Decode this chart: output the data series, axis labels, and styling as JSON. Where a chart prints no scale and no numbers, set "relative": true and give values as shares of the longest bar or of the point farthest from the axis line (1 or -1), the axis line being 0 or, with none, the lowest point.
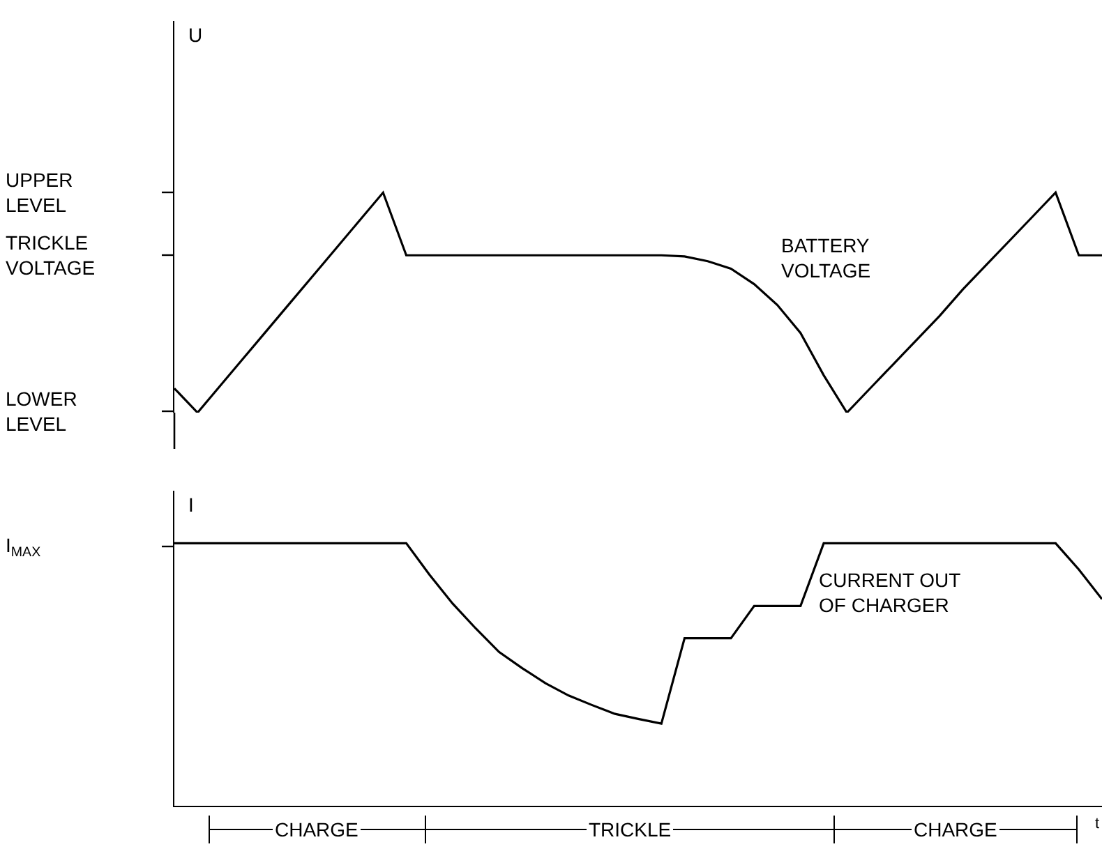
{
  "chart_data": [
    {
      "type": "line",
      "relative": true,
      "ylabel": "U",
      "marker": "none",
      "line_style": "solid",
      "categories": [
        null,
        null,
        null,
        null,
        null,
        null,
        null,
        null,
        null,
        null,
        null,
        null,
        null,
        null,
        null,
        null,
        null,
        null,
        null,
        null,
        null,
        null,
        null,
        null,
        null,
        null,
        null,
        null,
        null,
        null,
        null,
        null,
        null,
        null,
        null,
        null,
        null,
        null,
        null,
        null,
        null
      ],
      "series": [
        {
          "color": "#000000",
          "values": [
            0.11,
            0,
            0.125,
            0.25,
            0.375,
            0.5,
            0.625,
            0.75,
            0.875,
            1,
            0.715,
            0.715,
            0.715,
            0.715,
            0.715,
            0.715,
            0.715,
            0.715,
            0.715,
            0.715,
            0.715,
            0.715,
            0.71,
            0.688,
            0.654,
            0.584,
            0.489,
            0.362,
            0.17,
            0,
            0.11,
            0.22,
            0.33,
            0.44,
            0.56,
            0.67,
            0.78,
            0.89,
            1,
            0.715,
            0.715
          ]
        }
      ],
      "annotations": [
        "UPPER LEVEL",
        "TRICKLE VOLTAGE",
        "LOWER LEVEL",
        "BATTERY VOLTAGE"
      ]
    },
    {
      "type": "line",
      "relative": true,
      "ylabel": "I",
      "xlabel": "t",
      "marker": "none",
      "line_style": "solid",
      "categories": [
        null,
        null,
        null,
        null,
        null,
        null,
        null,
        null,
        null,
        null,
        null,
        null,
        null,
        null,
        null,
        null,
        null,
        null,
        null,
        null,
        null,
        null,
        null,
        null,
        null,
        null,
        null,
        null,
        null,
        null,
        null,
        null,
        null,
        null,
        null,
        null,
        null,
        null,
        null,
        null,
        null
      ],
      "series": [
        {
          "color": "#000000",
          "values": [
            1,
            1,
            1,
            1,
            1,
            1,
            1,
            1,
            1,
            1,
            1,
            0.88,
            0.77,
            0.675,
            0.586,
            0.524,
            0.467,
            0.42,
            0.384,
            0.35,
            0.331,
            0.313,
            0.638,
            0.638,
            0.638,
            0.761,
            0.761,
            0.761,
            1,
            1,
            1,
            1,
            1,
            1,
            1,
            1,
            1,
            1,
            1,
            0.9,
            0.787
          ]
        }
      ],
      "annotations": [
        "I$_{MAX}$",
        "CURRENT OUT OF CHARGER",
        "CHARGE",
        "TRICKLE",
        "CHARGE"
      ]
    }
  ]
}
